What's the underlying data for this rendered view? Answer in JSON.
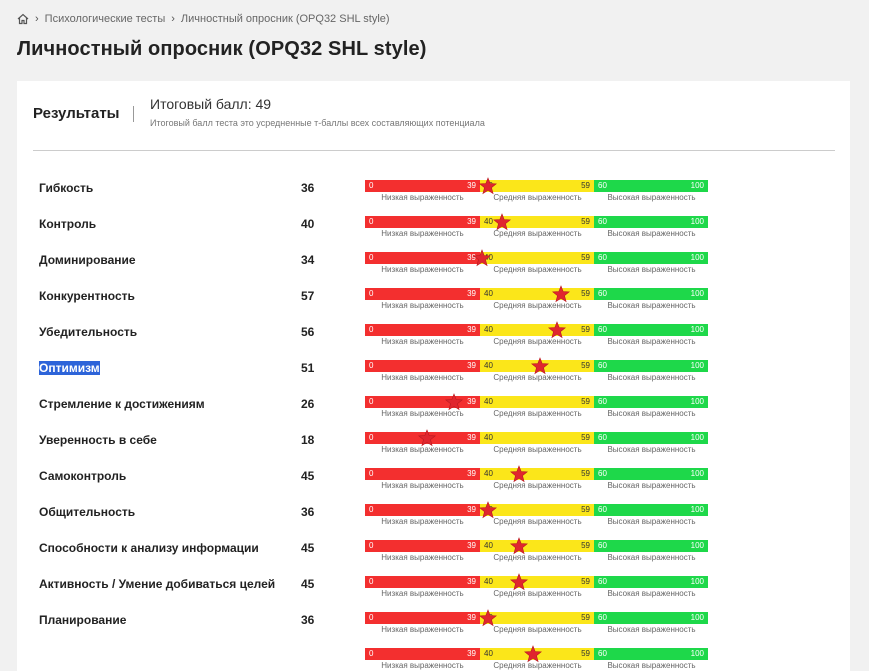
{
  "breadcrumb": {
    "items": [
      "Психологические тесты",
      "Личностный опросник (OPQ32 SHL style)"
    ]
  },
  "page": {
    "title": "Личностный опросник (OPQ32 SHL style)"
  },
  "results": {
    "heading": "Результаты",
    "total_label": "Итоговый балл: 49",
    "total_note": "Итоговый балл теста это усредненные т-баллы всех составляющих потенциала"
  },
  "scale": {
    "low": {
      "min": "0",
      "max": "39",
      "caption": "Низкая выраженность",
      "color": "#f32f2f"
    },
    "mid": {
      "min": "40",
      "max": "59",
      "caption": "Средняя выраженность",
      "color": "#fbe61a"
    },
    "high": {
      "min": "60",
      "max": "100",
      "caption": "Высокая выраженность",
      "color": "#1ed84a"
    },
    "marker_color": "#e0262e"
  },
  "traits": [
    {
      "name": "Гибкость",
      "score": "36",
      "value": 36
    },
    {
      "name": "Контроль",
      "score": "40",
      "value": 40
    },
    {
      "name": "Доминирование",
      "score": "34",
      "value": 34
    },
    {
      "name": "Конкурентность",
      "score": "57",
      "value": 57
    },
    {
      "name": "Убедительность",
      "score": "56",
      "value": 56
    },
    {
      "name": "Оптимизм",
      "score": "51",
      "value": 51,
      "selected": true
    },
    {
      "name": "Стремление к достижениям",
      "score": "26",
      "value": 26
    },
    {
      "name": "Уверенность в себе",
      "score": "18",
      "value": 18
    },
    {
      "name": "Самоконтроль",
      "score": "45",
      "value": 45
    },
    {
      "name": "Общительность",
      "score": "36",
      "value": 36
    },
    {
      "name": "Способности к анализу информации",
      "score": "45",
      "value": 45
    },
    {
      "name": "Активность / Умение добиваться целей",
      "score": "45",
      "value": 45
    },
    {
      "name": "Планирование",
      "score": "36",
      "value": 36
    },
    {
      "name": "",
      "score": "",
      "value": 49
    }
  ]
}
